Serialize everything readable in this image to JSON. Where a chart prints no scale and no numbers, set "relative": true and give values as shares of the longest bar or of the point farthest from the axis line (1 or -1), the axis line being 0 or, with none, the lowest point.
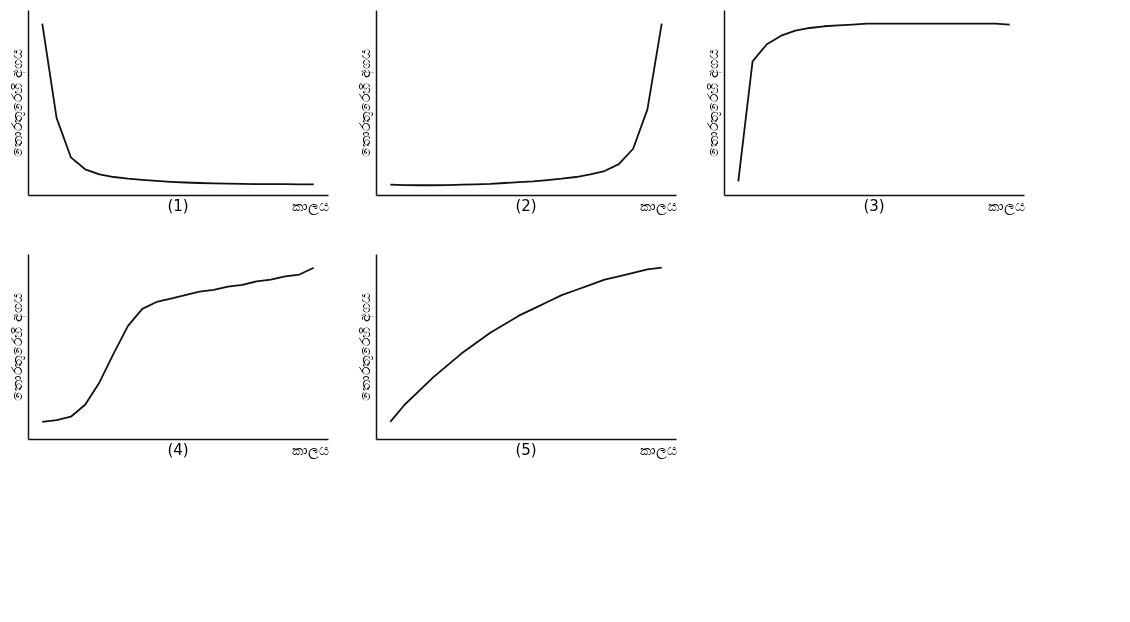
{
  "chart_data": [
    {
      "type": "line",
      "title": "(1)",
      "xlabel": "කාලය",
      "ylabel": "තොරතුරෙහි අගය",
      "relative": true,
      "tick_labels": false,
      "grid": false,
      "marker": "none",
      "line_style": "solid",
      "categories": [
        null,
        null,
        null,
        null,
        null,
        null,
        null,
        null,
        null,
        null,
        null,
        null,
        null,
        null,
        null,
        null,
        null,
        null,
        null,
        null
      ],
      "series": [
        {
          "color": "#111111",
          "values": [
            1,
            0.45,
            0.22,
            0.15,
            0.12,
            0.105,
            0.095,
            0.088,
            0.082,
            0.077,
            0.073,
            0.07,
            0.068,
            0.066,
            0.065,
            0.064,
            0.063,
            0.063,
            0.062,
            0.062
          ]
        }
      ]
    },
    {
      "type": "line",
      "title": "(2)",
      "xlabel": "කාලය",
      "ylabel": "තොරතුරෙහි අගය",
      "relative": true,
      "tick_labels": false,
      "grid": false,
      "marker": "none",
      "line_style": "solid",
      "categories": [
        null,
        null,
        null,
        null,
        null,
        null,
        null,
        null,
        null,
        null,
        null,
        null,
        null,
        null,
        null,
        null,
        null,
        null,
        null,
        null
      ],
      "series": [
        {
          "color": "#111111",
          "values": [
            0.06,
            0.058,
            0.057,
            0.057,
            0.058,
            0.06,
            0.062,
            0.065,
            0.07,
            0.075,
            0.08,
            0.087,
            0.095,
            0.105,
            0.12,
            0.14,
            0.18,
            0.27,
            0.5,
            1
          ]
        }
      ]
    },
    {
      "type": "line",
      "title": "(3)",
      "xlabel": "කාලය",
      "ylabel": "තොරතුරෙහි අගය",
      "relative": true,
      "tick_labels": false,
      "grid": false,
      "marker": "none",
      "line_style": "solid",
      "categories": [
        null,
        null,
        null,
        null,
        null,
        null,
        null,
        null,
        null,
        null,
        null,
        null,
        null,
        null,
        null,
        null,
        null,
        null,
        null,
        null
      ],
      "series": [
        {
          "color": "#111111",
          "values": [
            0.08,
            0.78,
            0.88,
            0.93,
            0.96,
            0.975,
            0.985,
            0.99,
            0.995,
            1,
            1,
            1,
            1,
            1,
            1,
            1,
            1,
            1,
            1,
            0.995
          ]
        }
      ]
    },
    {
      "type": "line",
      "title": "(4)",
      "xlabel": "කාලය",
      "ylabel": "තොරතුරෙහි අගය",
      "relative": true,
      "tick_labels": false,
      "grid": false,
      "marker": "none",
      "line_style": "solid",
      "categories": [
        null,
        null,
        null,
        null,
        null,
        null,
        null,
        null,
        null,
        null,
        null,
        null,
        null,
        null,
        null,
        null,
        null,
        null,
        null,
        null
      ],
      "series": [
        {
          "color": "#111111",
          "values": [
            0.1,
            0.11,
            0.13,
            0.2,
            0.33,
            0.5,
            0.66,
            0.76,
            0.8,
            0.82,
            0.84,
            0.86,
            0.87,
            0.89,
            0.9,
            0.92,
            0.93,
            0.95,
            0.96,
            1
          ]
        }
      ]
    },
    {
      "type": "line",
      "title": "(5)",
      "xlabel": "කාලය",
      "ylabel": "තොරතුරෙහි අගය",
      "relative": true,
      "tick_labels": false,
      "grid": false,
      "marker": "none",
      "line_style": "solid",
      "categories": [
        null,
        null,
        null,
        null,
        null,
        null,
        null,
        null,
        null,
        null,
        null,
        null,
        null,
        null,
        null,
        null,
        null,
        null,
        null,
        null
      ],
      "series": [
        {
          "color": "#111111",
          "values": [
            0.1,
            0.2,
            0.28,
            0.36,
            0.43,
            0.5,
            0.56,
            0.62,
            0.67,
            0.72,
            0.76,
            0.8,
            0.84,
            0.87,
            0.9,
            0.93,
            0.95,
            0.97,
            0.99,
            1
          ]
        }
      ]
    }
  ]
}
